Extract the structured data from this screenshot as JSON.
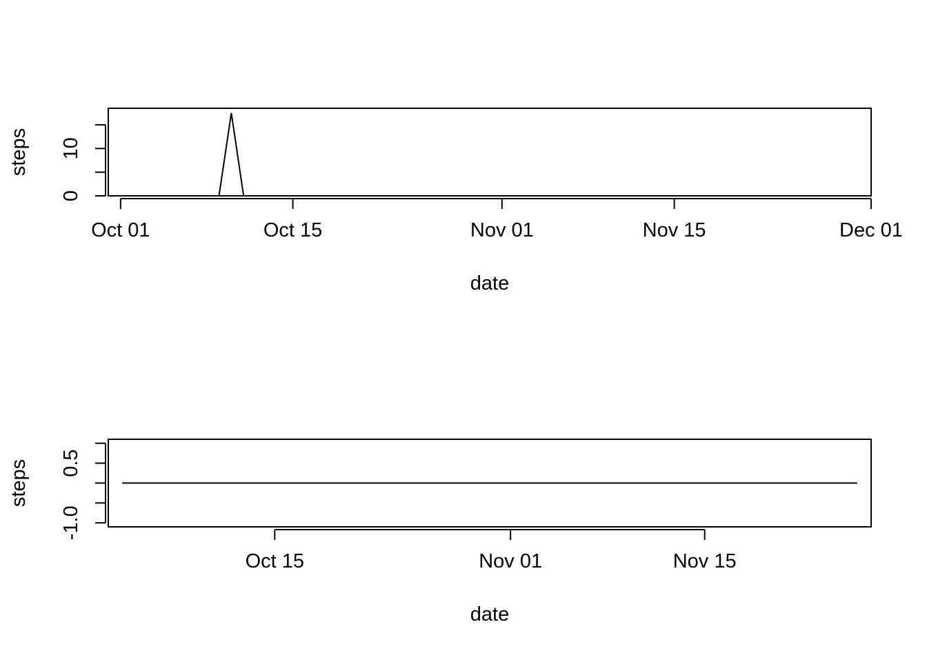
{
  "chart_data": [
    {
      "type": "line",
      "xlabel": "date",
      "ylabel": "steps",
      "x_ticks": [
        "2012-10-01",
        "2012-10-15",
        "2012-11-01",
        "2012-11-15",
        "2012-12-01"
      ],
      "x_tick_labels": [
        "Oct 01",
        "Oct 15",
        "Nov 01",
        "Nov 15",
        "Dec 01"
      ],
      "y_ticks": [
        0,
        5,
        10,
        15
      ],
      "y_tick_labels": [
        "0",
        "",
        "10",
        ""
      ],
      "xlim": [
        "2012-09-30",
        "2012-12-01"
      ],
      "ylim": [
        0,
        18.5
      ],
      "grid": false,
      "series": [
        {
          "x": [
            "2012-10-02",
            "2012-10-09",
            "2012-10-10",
            "2012-10-11",
            "2012-11-29"
          ],
          "y": [
            0,
            0,
            17.5,
            0,
            0
          ]
        }
      ]
    },
    {
      "type": "line",
      "xlabel": "date",
      "ylabel": "steps",
      "x_ticks": [
        "2012-10-15",
        "2012-11-01",
        "2012-11-15"
      ],
      "x_tick_labels": [
        "Oct 15",
        "Nov 01",
        "Nov 15"
      ],
      "y_ticks": [
        -1.0,
        -0.5,
        0,
        0.5,
        1.0
      ],
      "y_tick_labels": [
        "-1.0",
        "",
        "",
        "0.5",
        ""
      ],
      "xlim": [
        "2012-10-03",
        "2012-11-27"
      ],
      "ylim": [
        -1.1,
        1.1
      ],
      "grid": false,
      "series": [
        {
          "x": [
            "2012-10-04",
            "2012-11-26"
          ],
          "y": [
            0,
            0
          ]
        }
      ]
    }
  ]
}
